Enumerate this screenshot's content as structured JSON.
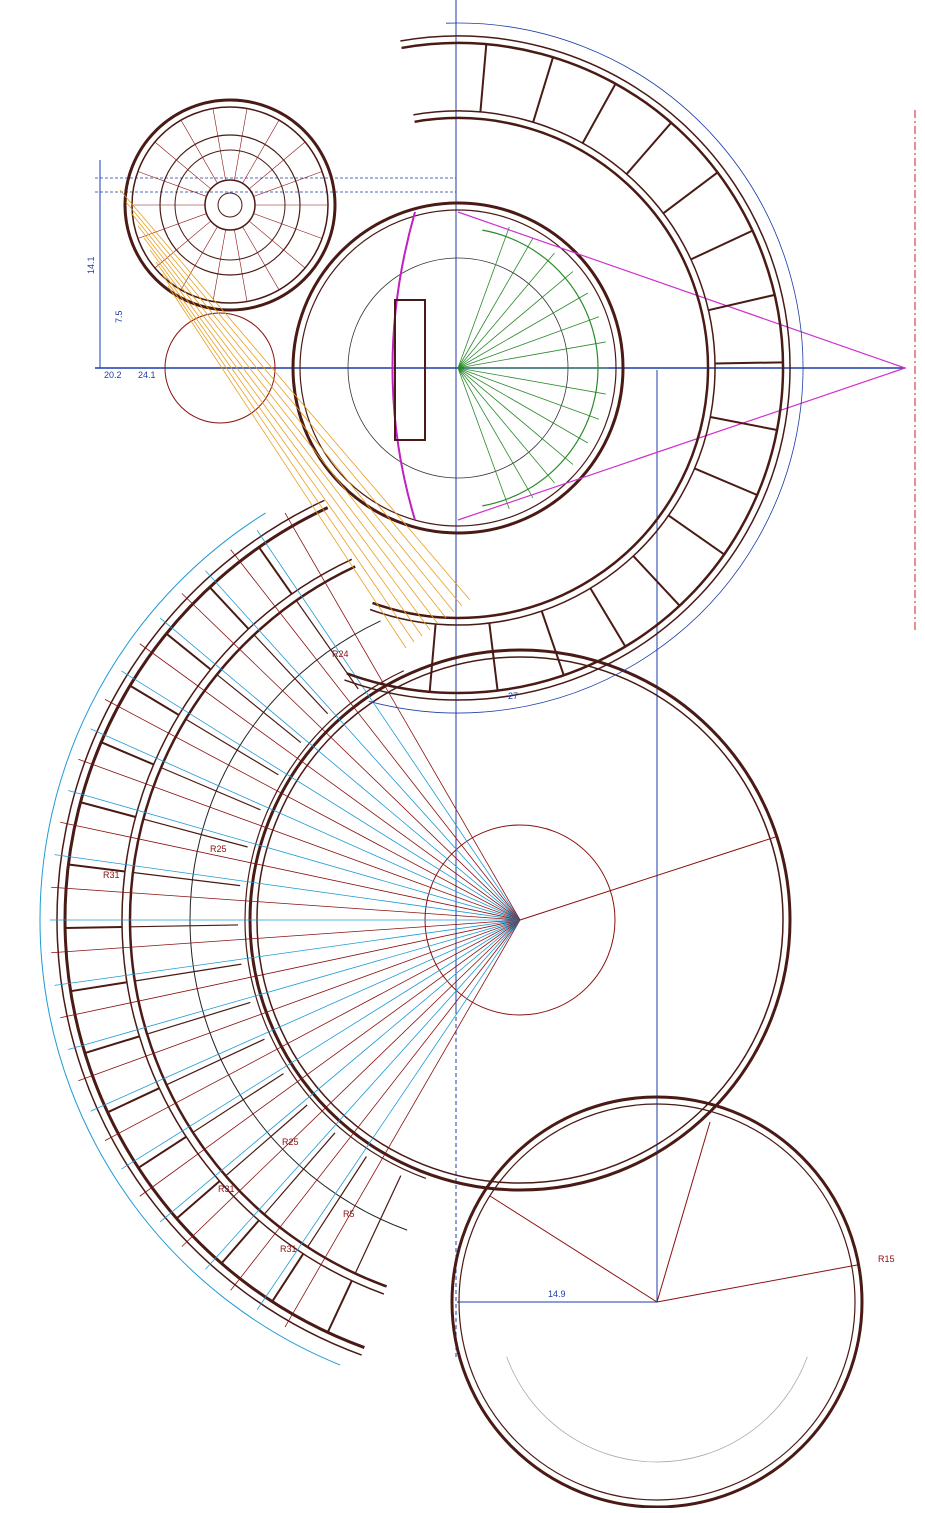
{
  "drawing": {
    "labels": [
      "R25",
      "R31",
      "R24",
      "R25",
      "R31",
      "R31",
      "R5",
      "R15",
      "14.9",
      "20.2",
      "24.1",
      "14.1",
      "7.5",
      "27"
    ]
  }
}
